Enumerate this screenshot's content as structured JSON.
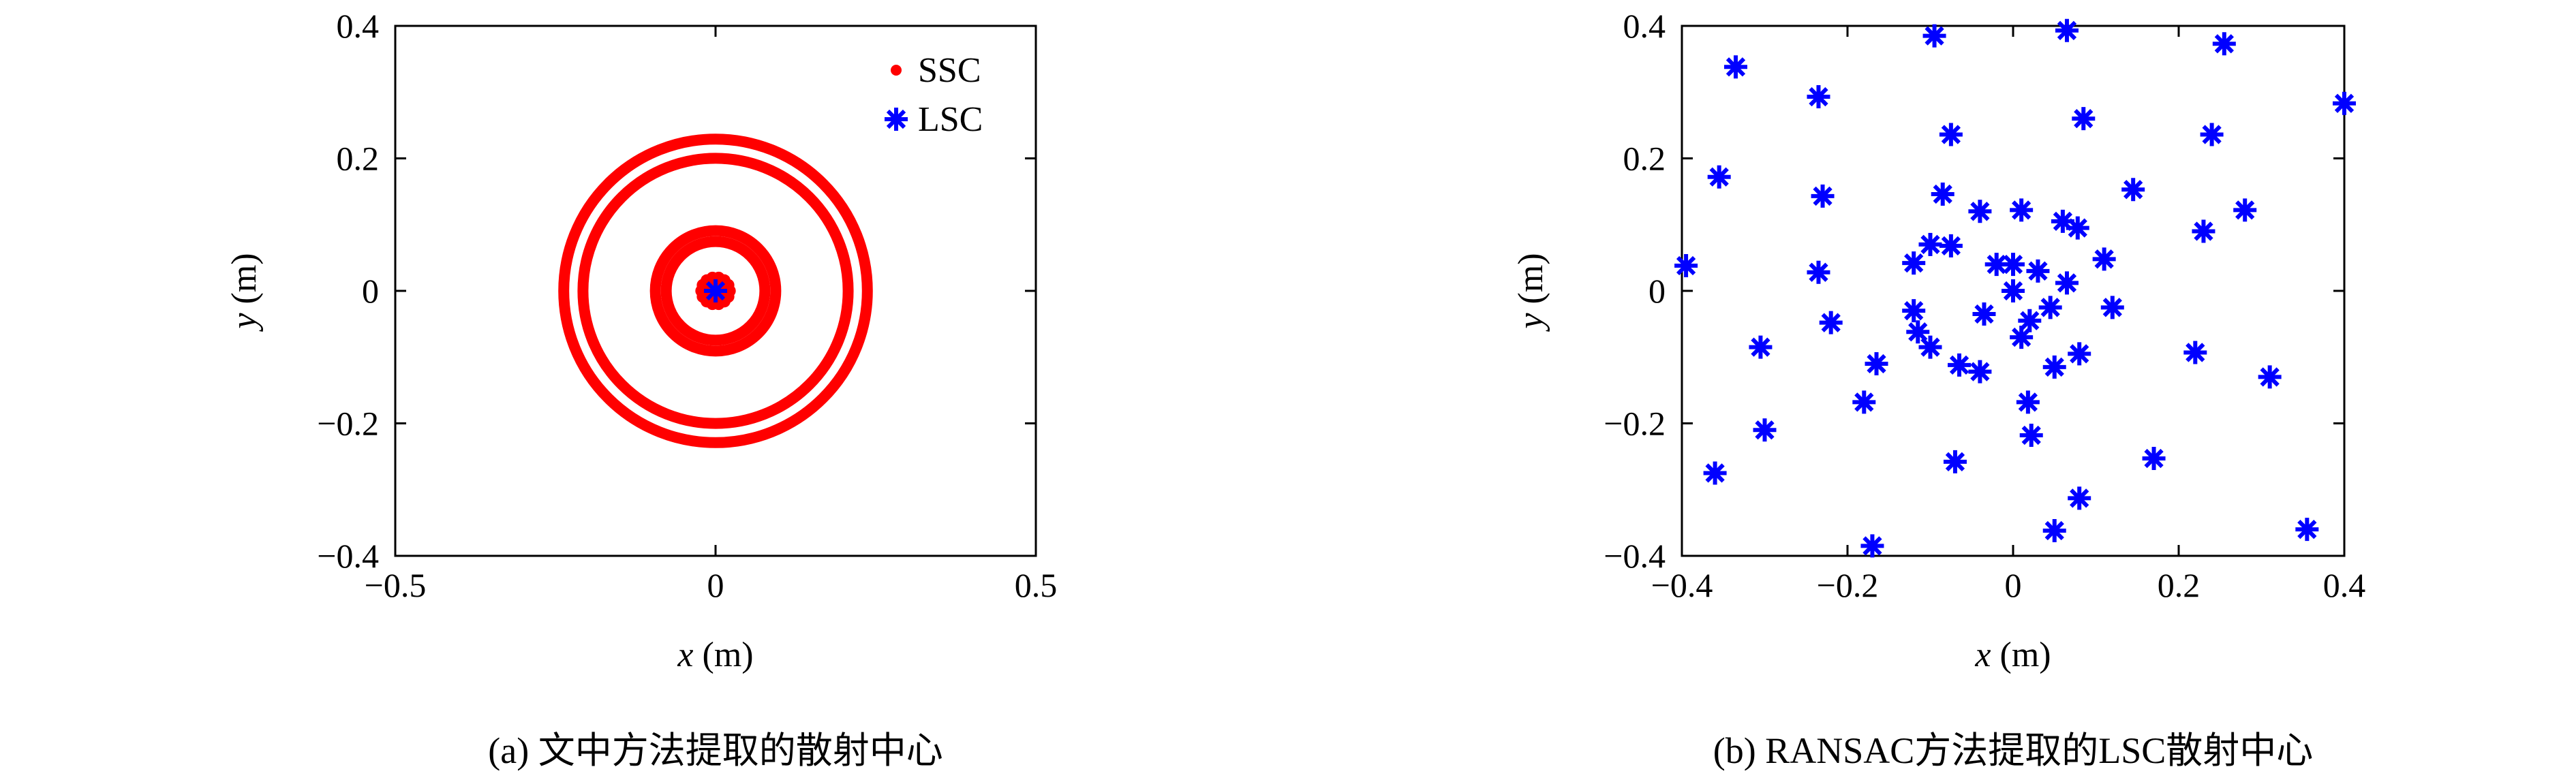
{
  "colors": {
    "ssc": "#ff0000",
    "lsc": "#0000ff",
    "axis": "#000000",
    "background": "#ffffff"
  },
  "chart_data": [
    {
      "id": "a",
      "type": "scatter",
      "caption": "(a) 文中方法提取的散射中心",
      "xlabel_var": "x",
      "xlabel_unit": " (m)",
      "ylabel_var": "y",
      "ylabel_unit": " (m)",
      "xlim": [
        -0.5,
        0.5
      ],
      "ylim": [
        -0.4,
        0.4
      ],
      "xticks": [
        -0.5,
        0,
        0.5
      ],
      "xtick_labels": [
        "−0.5",
        "0",
        "0.5"
      ],
      "yticks": [
        -0.4,
        -0.2,
        0,
        0.2,
        0.4
      ],
      "ytick_labels": [
        "−0.4",
        "−0.2",
        "0",
        "0.2",
        "0.4"
      ],
      "grid": false,
      "legend": {
        "position": "top-right",
        "entries": [
          {
            "label": "SSC",
            "marker": "dot",
            "color": "#ff0000"
          },
          {
            "label": "LSC",
            "marker": "asterisk",
            "color": "#0000ff"
          }
        ]
      },
      "series": [
        {
          "name": "SSC",
          "marker": "dot",
          "color": "#ff0000",
          "rings": [
            {
              "center": [
                0,
                0
              ],
              "radius": 0.237
            },
            {
              "center": [
                0,
                0
              ],
              "radius": 0.207
            },
            {
              "center": [
                0,
                0
              ],
              "radius": 0.094
            },
            {
              "center": [
                0,
                0
              ],
              "radius": 0.077
            }
          ],
          "cluster": {
            "center": [
              0,
              0
            ],
            "radius": 0.022
          }
        },
        {
          "name": "LSC",
          "marker": "asterisk",
          "color": "#0000ff",
          "points": [
            [
              0,
              0
            ]
          ]
        }
      ]
    },
    {
      "id": "b",
      "type": "scatter",
      "caption": "(b) RANSAC方法提取的LSC散射中心",
      "xlabel_var": "x",
      "xlabel_unit": " (m)",
      "ylabel_var": "y",
      "ylabel_unit": " (m)",
      "xlim": [
        -0.4,
        0.4
      ],
      "ylim": [
        -0.4,
        0.4
      ],
      "xticks": [
        -0.4,
        -0.2,
        0,
        0.2,
        0.4
      ],
      "xtick_labels": [
        "−0.4",
        "−0.2",
        "0",
        "0.2",
        "0.4"
      ],
      "yticks": [
        -0.4,
        -0.2,
        0,
        0.2,
        0.4
      ],
      "ytick_labels": [
        "−0.4",
        "−0.2",
        "0",
        "0.2",
        "0.4"
      ],
      "grid": false,
      "series": [
        {
          "marker": "asterisk",
          "color": "#0000ff",
          "points": [
            [
              -0.095,
              0.385
            ],
            [
              0.065,
              0.393
            ],
            [
              0.255,
              0.373
            ],
            [
              -0.335,
              0.338
            ],
            [
              -0.235,
              0.293
            ],
            [
              -0.075,
              0.236
            ],
            [
              0.085,
              0.26
            ],
            [
              0.24,
              0.236
            ],
            [
              0.4,
              0.283
            ],
            [
              -0.355,
              0.172
            ],
            [
              -0.23,
              0.143
            ],
            [
              -0.085,
              0.146
            ],
            [
              0.145,
              0.153
            ],
            [
              -0.1,
              0.07
            ],
            [
              -0.04,
              0.12
            ],
            [
              0.01,
              0.122
            ],
            [
              0.06,
              0.105
            ],
            [
              0.078,
              0.095
            ],
            [
              0.23,
              0.09
            ],
            [
              0.28,
              0.122
            ],
            [
              -0.395,
              0.038
            ],
            [
              -0.235,
              0.028
            ],
            [
              -0.12,
              0.042
            ],
            [
              -0.075,
              0.068
            ],
            [
              -0.02,
              0.04
            ],
            [
              0.0,
              0.04
            ],
            [
              0.03,
              0.03
            ],
            [
              0.065,
              0.012
            ],
            [
              0.11,
              0.048
            ],
            [
              0.0,
              0.0
            ],
            [
              -0.12,
              -0.03
            ],
            [
              -0.035,
              -0.035
            ],
            [
              0.02,
              -0.045
            ],
            [
              0.045,
              -0.025
            ],
            [
              0.12,
              -0.025
            ],
            [
              -0.22,
              -0.048
            ],
            [
              -0.305,
              -0.085
            ],
            [
              -0.115,
              -0.062
            ],
            [
              -0.1,
              -0.085
            ],
            [
              0.01,
              -0.07
            ],
            [
              0.08,
              -0.095
            ],
            [
              0.22,
              -0.093
            ],
            [
              -0.165,
              -0.11
            ],
            [
              -0.065,
              -0.112
            ],
            [
              -0.04,
              -0.122
            ],
            [
              0.05,
              -0.115
            ],
            [
              0.31,
              -0.13
            ],
            [
              -0.18,
              -0.168
            ],
            [
              0.018,
              -0.168
            ],
            [
              -0.3,
              -0.21
            ],
            [
              0.022,
              -0.218
            ],
            [
              -0.07,
              -0.258
            ],
            [
              0.17,
              -0.253
            ],
            [
              -0.36,
              -0.275
            ],
            [
              0.08,
              -0.313
            ],
            [
              0.05,
              -0.362
            ],
            [
              -0.17,
              -0.385
            ],
            [
              0.355,
              -0.36
            ]
          ]
        }
      ]
    }
  ]
}
